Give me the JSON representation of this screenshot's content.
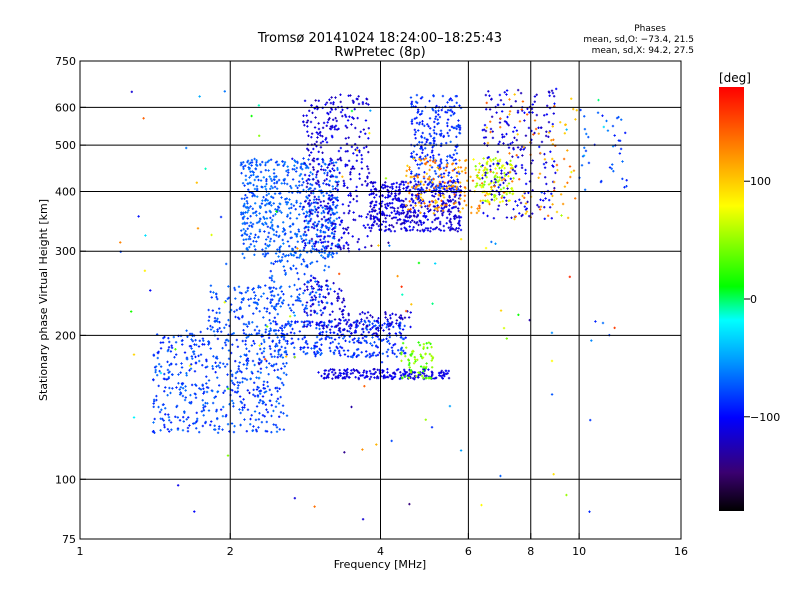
{
  "chart_data": {
    "type": "scatter",
    "title": "Tromsø 20141024 18:24:00–18:25:43",
    "subtitle": "RwPretec (8p)",
    "xlabel": "Frequency [MHz]",
    "ylabel": "Stationary phase Virtual Height [km]",
    "x_scale": "log",
    "y_scale": "log",
    "xlim": [
      1,
      16
    ],
    "ylim": [
      75,
      750
    ],
    "x_ticks": [
      "1",
      "2",
      "4",
      "6",
      "8",
      "10",
      "16"
    ],
    "y_ticks": [
      "75",
      "100",
      "200",
      "300",
      "400",
      "500",
      "600",
      "750"
    ],
    "x_gridlines": [
      2,
      4,
      6,
      8,
      10
    ],
    "y_gridlines": [
      100,
      200,
      300,
      400,
      500,
      600
    ],
    "phases_box": {
      "title": "Phases",
      "line_o": "mean, sd,O: −73.4, 21.5",
      "line_x": "mean, sd,X:  94.2, 27.5"
    },
    "colorbar": {
      "label": "[deg]",
      "range": [
        -180,
        180
      ],
      "ticks": [
        "100",
        "0",
        "−100"
      ],
      "tick_values": [
        100,
        0,
        -100
      ],
      "colors": [
        "#000000",
        "#3a0070",
        "#0000ff",
        "#00a0ff",
        "#00ffff",
        "#00ff00",
        "#ffff00",
        "#ff8000",
        "#ff0000"
      ]
    },
    "clusters": [
      {
        "f": [
          1.4,
          2.6
        ],
        "h": [
          125,
          205
        ],
        "phase": [
          -95,
          -65
        ],
        "n": 520
      },
      {
        "f": [
          1.8,
          2.5
        ],
        "h": [
          200,
          255
        ],
        "phase": [
          -90,
          -65
        ],
        "n": 140
      },
      {
        "f": [
          2.4,
          4.5
        ],
        "h": [
          180,
          215
        ],
        "phase": [
          -100,
          -70
        ],
        "n": 320
      },
      {
        "f": [
          2.4,
          3.2
        ],
        "h": [
          220,
          290
        ],
        "phase": [
          -90,
          -65
        ],
        "n": 120
      },
      {
        "f": [
          3.0,
          5.5
        ],
        "h": [
          162,
          170
        ],
        "phase": [
          -120,
          -100
        ],
        "n": 200
      },
      {
        "f": [
          4.4,
          5.1
        ],
        "h": [
          162,
          195
        ],
        "phase": [
          20,
          60
        ],
        "n": 70
      },
      {
        "f": [
          3.3,
          4.6
        ],
        "h": [
          200,
          225
        ],
        "phase": [
          -125,
          -105
        ],
        "n": 80
      },
      {
        "f": [
          2.8,
          3.4
        ],
        "h": [
          205,
          265
        ],
        "phase": [
          -125,
          -105
        ],
        "n": 80
      },
      {
        "f": [
          2.1,
          3.3
        ],
        "h": [
          290,
          470
        ],
        "phase": [
          -85,
          -60
        ],
        "n": 620
      },
      {
        "f": [
          2.8,
          3.8
        ],
        "h": [
          300,
          640
        ],
        "phase": [
          -125,
          -100
        ],
        "n": 380
      },
      {
        "f": [
          3.8,
          5.8
        ],
        "h": [
          330,
          420
        ],
        "phase": [
          -125,
          -100
        ],
        "n": 480
      },
      {
        "f": [
          4.6,
          5.8
        ],
        "h": [
          400,
          640
        ],
        "phase": [
          -100,
          -75
        ],
        "n": 260
      },
      {
        "f": [
          4.5,
          6.5
        ],
        "h": [
          360,
          470
        ],
        "phase": [
          95,
          150
        ],
        "n": 150
      },
      {
        "f": [
          6.2,
          7.4
        ],
        "h": [
          380,
          470
        ],
        "phase": [
          40,
          80
        ],
        "n": 110
      },
      {
        "f": [
          6.4,
          9.0
        ],
        "h": [
          350,
          660
        ],
        "phase": [
          -125,
          -95
        ],
        "n": 220
      },
      {
        "f": [
          6.5,
          10.0
        ],
        "h": [
          350,
          640
        ],
        "phase": [
          95,
          150
        ],
        "n": 90
      },
      {
        "f": [
          10.0,
          12.5
        ],
        "h": [
          400,
          600
        ],
        "phase": [
          -95,
          -60
        ],
        "n": 40
      },
      {
        "f": [
          1.2,
          12.0
        ],
        "h": [
          80,
          650
        ],
        "phase": [
          -150,
          170
        ],
        "n": 120
      }
    ]
  }
}
